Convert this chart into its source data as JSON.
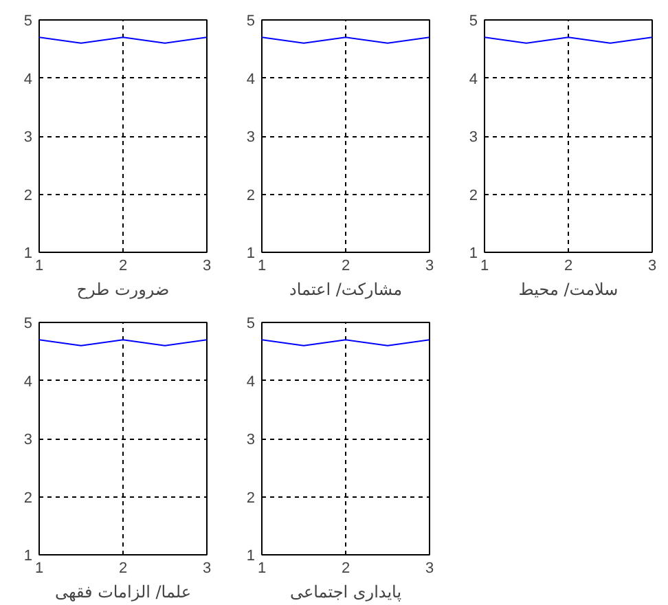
{
  "chart_data": [
    {
      "type": "line",
      "xlabel": "ضرورت طرح",
      "x": [
        1,
        1.5,
        2,
        2.5,
        3
      ],
      "series": [
        {
          "color": "#0000ff",
          "values": [
            4.7,
            4.6,
            4.7,
            4.6,
            4.7
          ]
        }
      ],
      "xlim": [
        1,
        3
      ],
      "ylim": [
        1,
        5
      ],
      "xticks": [
        1,
        2,
        3
      ],
      "yticks": [
        1,
        2,
        3,
        4,
        5
      ],
      "grid": true,
      "line_style": "solid"
    },
    {
      "type": "line",
      "xlabel": "مشارکت/ اعتماد",
      "x": [
        1,
        1.5,
        2,
        2.5,
        3
      ],
      "series": [
        {
          "color": "#0000ff",
          "values": [
            4.7,
            4.6,
            4.7,
            4.6,
            4.7
          ]
        }
      ],
      "xlim": [
        1,
        3
      ],
      "ylim": [
        1,
        5
      ],
      "xticks": [
        1,
        2,
        3
      ],
      "yticks": [
        1,
        2,
        3,
        4,
        5
      ],
      "grid": true,
      "line_style": "solid"
    },
    {
      "type": "line",
      "xlabel": "سلامت/ محیط",
      "x": [
        1,
        1.5,
        2,
        2.5,
        3
      ],
      "series": [
        {
          "color": "#0000ff",
          "values": [
            4.7,
            4.6,
            4.7,
            4.6,
            4.7
          ]
        }
      ],
      "xlim": [
        1,
        3
      ],
      "ylim": [
        1,
        5
      ],
      "xticks": [
        1,
        2,
        3
      ],
      "yticks": [
        1,
        2,
        3,
        4,
        5
      ],
      "grid": true,
      "line_style": "solid"
    },
    {
      "type": "line",
      "xlabel": "علما/ الزامات فقهی",
      "x": [
        1,
        1.5,
        2,
        2.5,
        3
      ],
      "series": [
        {
          "color": "#0000ff",
          "values": [
            4.7,
            4.6,
            4.7,
            4.6,
            4.7
          ]
        }
      ],
      "xlim": [
        1,
        3
      ],
      "ylim": [
        1,
        5
      ],
      "xticks": [
        1,
        2,
        3
      ],
      "yticks": [
        1,
        2,
        3,
        4,
        5
      ],
      "grid": true,
      "line_style": "solid"
    },
    {
      "type": "line",
      "xlabel": "پایداری اجتماعی",
      "x": [
        1,
        1.5,
        2,
        2.5,
        3
      ],
      "series": [
        {
          "color": "#0000ff",
          "values": [
            4.7,
            4.6,
            4.7,
            4.6,
            4.7
          ]
        }
      ],
      "xlim": [
        1,
        3
      ],
      "ylim": [
        1,
        5
      ],
      "xticks": [
        1,
        2,
        3
      ],
      "yticks": [
        1,
        2,
        3,
        4,
        5
      ],
      "grid": true,
      "line_style": "solid"
    }
  ]
}
